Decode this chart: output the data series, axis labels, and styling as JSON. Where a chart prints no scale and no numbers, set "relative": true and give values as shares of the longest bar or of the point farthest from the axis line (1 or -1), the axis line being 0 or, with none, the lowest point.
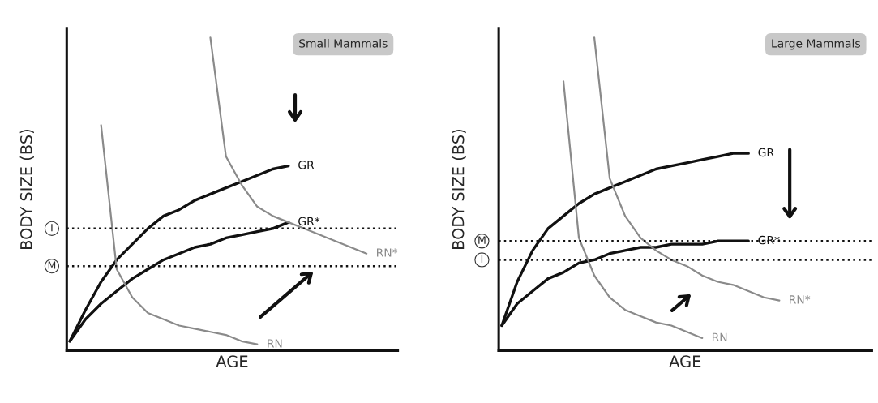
{
  "chart_data": [
    {
      "type": "line",
      "title": "Small Mammals",
      "xlabel": "AGE",
      "ylabel": "BODY SIZE (BS)",
      "relative": true,
      "tick_labels": false,
      "categories": [
        null,
        null,
        null,
        null,
        null,
        null,
        null,
        null,
        null,
        null,
        null,
        null,
        null,
        null,
        null,
        null,
        null,
        null,
        null,
        null,
        null
      ],
      "series": [
        {
          "name": "GR",
          "color": "#111111",
          "values": [
            0.03,
            0.13,
            0.22,
            0.29,
            0.34,
            0.39,
            0.43,
            0.45,
            0.48,
            0.5,
            0.52,
            0.54,
            0.56,
            0.58,
            0.59,
            null,
            null,
            null,
            null,
            null,
            null
          ]
        },
        {
          "name": "GR*",
          "color": "#111111",
          "values": [
            0.03,
            0.1,
            0.15,
            0.19,
            0.23,
            0.26,
            0.29,
            0.31,
            0.33,
            0.34,
            0.36,
            0.37,
            0.38,
            0.39,
            0.41,
            null,
            null,
            null,
            null,
            null,
            null
          ]
        },
        {
          "name": "RN",
          "color": "#8a8a8a",
          "values": [
            null,
            null,
            0.72,
            0.26,
            0.17,
            0.12,
            0.1,
            0.08,
            0.07,
            0.06,
            0.05,
            0.03,
            0.02,
            null,
            null,
            null,
            null,
            null,
            null,
            null,
            null
          ]
        },
        {
          "name": "RN*",
          "color": "#8a8a8a",
          "values": [
            null,
            null,
            null,
            null,
            null,
            null,
            null,
            null,
            null,
            1.0,
            0.62,
            0.53,
            0.46,
            0.43,
            0.41,
            0.39,
            0.37,
            0.35,
            0.33,
            0.31,
            null
          ]
        }
      ],
      "ref_lines": [
        {
          "axis": "y",
          "value": 0.39,
          "label": "I",
          "line_style": "dotted"
        },
        {
          "axis": "y",
          "value": 0.27,
          "label": "M",
          "line_style": "dotted"
        }
      ]
    },
    {
      "type": "line",
      "title": "Large Mammals",
      "xlabel": "AGE",
      "ylabel": "BODY SIZE (BS)",
      "relative": true,
      "tick_labels": false,
      "categories": [
        null,
        null,
        null,
        null,
        null,
        null,
        null,
        null,
        null,
        null,
        null,
        null,
        null,
        null,
        null,
        null,
        null,
        null,
        null,
        null,
        null,
        null,
        null,
        null
      ],
      "series": [
        {
          "name": "GR",
          "color": "#111111",
          "values": [
            0.08,
            0.22,
            0.32,
            0.39,
            0.43,
            0.47,
            0.5,
            0.52,
            0.54,
            0.56,
            0.58,
            0.59,
            0.6,
            0.61,
            0.62,
            0.63,
            0.63,
            null,
            null,
            null,
            null,
            null,
            null,
            null
          ]
        },
        {
          "name": "GR*",
          "color": "#111111",
          "values": [
            0.08,
            0.15,
            0.19,
            0.23,
            0.25,
            0.28,
            0.29,
            0.31,
            0.32,
            0.33,
            0.33,
            0.34,
            0.34,
            0.34,
            0.35,
            0.35,
            0.35,
            null,
            null,
            null,
            null,
            null,
            null,
            null
          ]
        },
        {
          "name": "RN",
          "color": "#8a8a8a",
          "values": [
            null,
            null,
            null,
            null,
            0.86,
            0.36,
            0.24,
            0.17,
            0.13,
            0.11,
            0.09,
            0.08,
            0.06,
            0.04,
            null,
            null,
            null,
            null,
            null,
            null,
            null,
            null,
            null,
            null
          ]
        },
        {
          "name": "RN*",
          "color": "#8a8a8a",
          "values": [
            null,
            null,
            null,
            null,
            null,
            null,
            1.0,
            0.55,
            0.43,
            0.36,
            0.32,
            0.29,
            0.27,
            0.24,
            0.22,
            0.21,
            0.19,
            0.17,
            0.16,
            null,
            null,
            null,
            null,
            null
          ]
        }
      ],
      "ref_lines": [
        {
          "axis": "y",
          "value": 0.35,
          "label": "M",
          "line_style": "dotted"
        },
        {
          "axis": "y",
          "value": 0.29,
          "label": "I",
          "line_style": "dotted"
        }
      ]
    }
  ]
}
